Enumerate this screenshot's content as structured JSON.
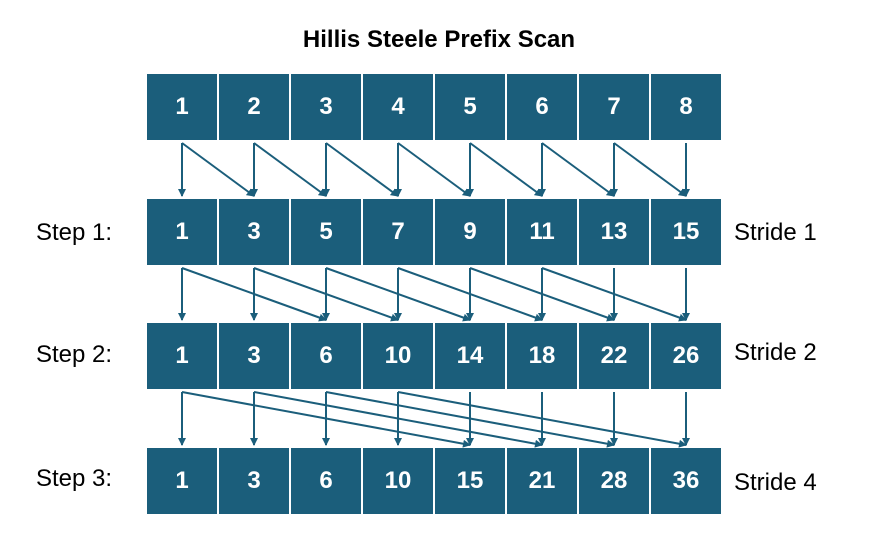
{
  "title": "Hillis Steele Prefix Scan",
  "colors": {
    "cell_fill": "#1b5e7b",
    "cell_text": "#ffffff",
    "arrow": "#1b5e7b"
  },
  "rows": [
    {
      "step_label": "",
      "stride_label": "",
      "stride": 0,
      "values": [
        "1",
        "2",
        "3",
        "4",
        "5",
        "6",
        "7",
        "8"
      ]
    },
    {
      "step_label": "Step 1:",
      "stride_label": "Stride 1",
      "stride": 1,
      "values": [
        "1",
        "3",
        "5",
        "7",
        "9",
        "11",
        "13",
        "15"
      ]
    },
    {
      "step_label": "Step 2:",
      "stride_label": "Stride 2",
      "stride": 2,
      "values": [
        "1",
        "3",
        "6",
        "10",
        "14",
        "18",
        "22",
        "26"
      ]
    },
    {
      "step_label": "Step 3:",
      "stride_label": "Stride 4",
      "stride": 4,
      "values": [
        "1",
        "3",
        "6",
        "10",
        "15",
        "21",
        "28",
        "36"
      ]
    }
  ]
}
